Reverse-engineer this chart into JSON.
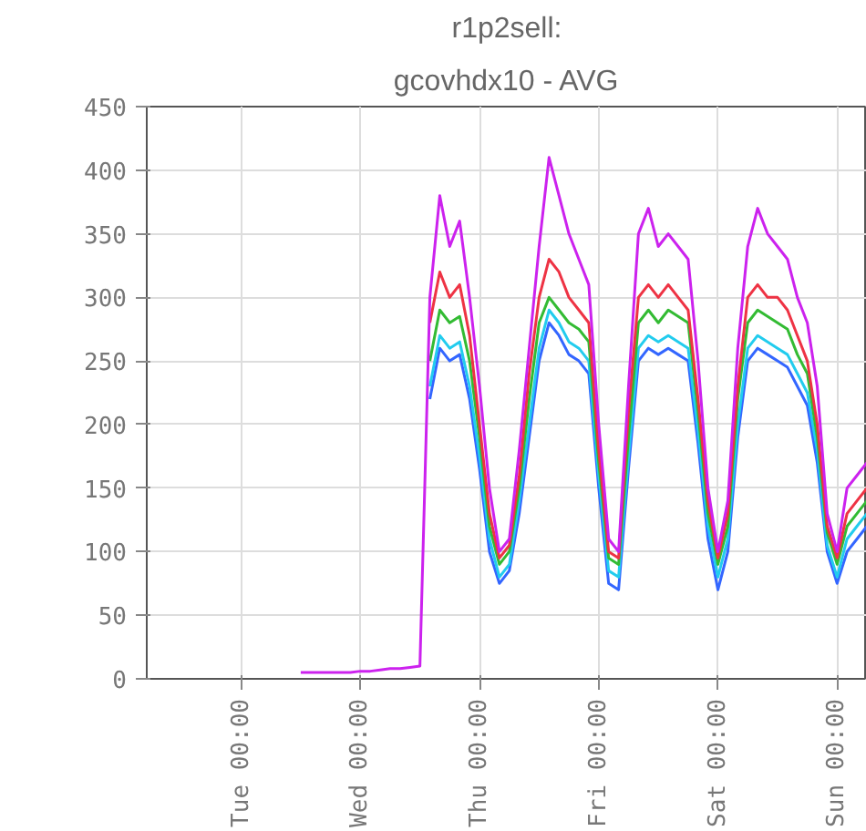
{
  "chart_data": {
    "type": "line",
    "title": "r1p2sell:",
    "subtitle": "gcovhdx10 - AVG",
    "categories": [
      null,
      null,
      null,
      null,
      null,
      null,
      null,
      null,
      null,
      "Tue 00:00",
      null,
      null,
      null,
      null,
      null,
      null,
      null,
      null,
      null,
      null,
      null,
      "Wed 00:00",
      null,
      null,
      null,
      null,
      null,
      null,
      null,
      null,
      null,
      null,
      null,
      "Thu 00:00",
      null,
      null,
      null,
      null,
      null,
      null,
      null,
      null,
      null,
      null,
      null,
      "Fri 00:00",
      null,
      null,
      null,
      null,
      null,
      null,
      null,
      null,
      null,
      null,
      null,
      "Sat 00:00",
      null,
      null,
      null,
      null,
      null,
      null,
      null,
      null,
      null,
      null,
      null,
      "Sun 00:00",
      null,
      null,
      null
    ],
    "series": [
      {
        "color": "#3366ff",
        "values": [
          null,
          null,
          null,
          null,
          null,
          null,
          null,
          null,
          null,
          null,
          null,
          null,
          null,
          null,
          null,
          null,
          null,
          null,
          null,
          null,
          null,
          null,
          null,
          null,
          null,
          null,
          null,
          null,
          220,
          260,
          250,
          255,
          220,
          165,
          100,
          75,
          85,
          130,
          190,
          250,
          280,
          270,
          255,
          250,
          240,
          150,
          75,
          70,
          165,
          250,
          260,
          255,
          260,
          255,
          250,
          185,
          110,
          70,
          100,
          190,
          250,
          260,
          255,
          250,
          245,
          230,
          215,
          170,
          100,
          75,
          100,
          110,
          120
        ]
      },
      {
        "color": "#22ccee",
        "values": [
          null,
          null,
          null,
          null,
          null,
          null,
          null,
          null,
          null,
          null,
          null,
          null,
          null,
          null,
          null,
          null,
          null,
          null,
          null,
          null,
          null,
          null,
          null,
          null,
          null,
          null,
          null,
          null,
          230,
          270,
          260,
          265,
          230,
          175,
          110,
          80,
          90,
          140,
          200,
          260,
          290,
          280,
          265,
          260,
          250,
          160,
          85,
          80,
          175,
          260,
          270,
          265,
          270,
          265,
          260,
          195,
          120,
          80,
          110,
          200,
          260,
          270,
          265,
          260,
          255,
          240,
          225,
          180,
          105,
          80,
          110,
          120,
          130
        ]
      },
      {
        "color": "#33bb33",
        "values": [
          null,
          null,
          null,
          null,
          null,
          null,
          null,
          null,
          null,
          null,
          null,
          null,
          null,
          null,
          null,
          null,
          null,
          null,
          null,
          null,
          null,
          null,
          null,
          null,
          null,
          null,
          null,
          null,
          250,
          290,
          280,
          285,
          250,
          190,
          120,
          90,
          100,
          150,
          220,
          280,
          300,
          290,
          280,
          275,
          265,
          170,
          95,
          90,
          190,
          280,
          290,
          280,
          290,
          285,
          280,
          210,
          130,
          90,
          120,
          220,
          280,
          290,
          285,
          280,
          275,
          255,
          240,
          190,
          115,
          90,
          120,
          130,
          140
        ]
      },
      {
        "color": "#ee3344",
        "values": [
          null,
          null,
          null,
          null,
          null,
          null,
          null,
          null,
          null,
          null,
          null,
          null,
          null,
          null,
          null,
          null,
          null,
          null,
          null,
          null,
          null,
          null,
          null,
          null,
          null,
          null,
          null,
          null,
          280,
          320,
          300,
          310,
          270,
          200,
          130,
          95,
          105,
          160,
          240,
          300,
          330,
          320,
          300,
          290,
          280,
          180,
          100,
          95,
          210,
          300,
          310,
          300,
          310,
          300,
          290,
          220,
          140,
          95,
          130,
          230,
          300,
          310,
          300,
          300,
          290,
          270,
          250,
          200,
          120,
          95,
          130,
          140,
          150
        ]
      },
      {
        "color": "#cc22ee",
        "values": [
          null,
          null,
          null,
          null,
          null,
          null,
          null,
          null,
          null,
          null,
          null,
          null,
          null,
          null,
          null,
          5,
          5,
          5,
          5,
          5,
          5,
          6,
          6,
          7,
          8,
          8,
          9,
          10,
          300,
          380,
          340,
          360,
          300,
          230,
          150,
          100,
          110,
          180,
          260,
          340,
          410,
          380,
          350,
          330,
          310,
          200,
          110,
          100,
          230,
          350,
          370,
          340,
          350,
          340,
          330,
          250,
          150,
          100,
          140,
          260,
          340,
          370,
          350,
          340,
          330,
          300,
          280,
          230,
          130,
          100,
          150,
          160,
          170
        ]
      }
    ],
    "ylim": [
      0,
      450
    ],
    "yticks": [
      0,
      50,
      100,
      150,
      200,
      250,
      300,
      350,
      400,
      450
    ],
    "grid": true
  }
}
